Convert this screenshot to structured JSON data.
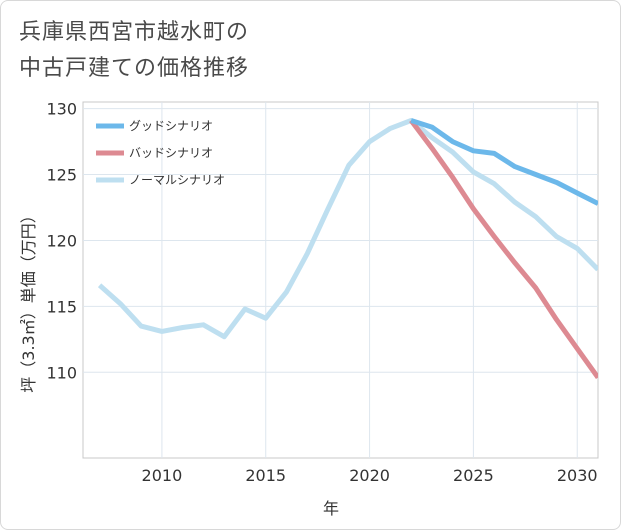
{
  "title": {
    "line1": "兵庫県西宮市越水町の",
    "line2": "中古戸建ての価格推移"
  },
  "chart_data": {
    "type": "line",
    "xlabel": "年",
    "ylabel": "坪（3.3㎡）単価（万円）",
    "xlim": [
      2006.2,
      2031
    ],
    "ylim": [
      103.5,
      130.5
    ],
    "x_ticks": [
      2010,
      2015,
      2020,
      2025,
      2030
    ],
    "y_ticks": [
      110,
      115,
      120,
      125,
      130
    ],
    "grid": true,
    "legend_position": "top-left",
    "series": [
      {
        "name": "グッドシナリオ",
        "color": "#6cb8ea",
        "x": [
          2022,
          2023,
          2024,
          2025,
          2026,
          2027,
          2028,
          2029,
          2030,
          2031
        ],
        "values": [
          129.1,
          128.6,
          127.5,
          126.8,
          126.6,
          125.6,
          125.0,
          124.4,
          123.6,
          122.8
        ]
      },
      {
        "name": "バッドシナリオ",
        "color": "#dd8a92",
        "x": [
          2022,
          2023,
          2024,
          2025,
          2026,
          2027,
          2028,
          2029,
          2030,
          2031
        ],
        "values": [
          129.1,
          127.0,
          124.8,
          122.4,
          120.3,
          118.3,
          116.4,
          114.0,
          111.8,
          109.6
        ]
      },
      {
        "name": "ノーマルシナリオ",
        "color": "#bedff0",
        "x": [
          2007,
          2008,
          2009,
          2010,
          2011,
          2012,
          2013,
          2014,
          2015,
          2016,
          2017,
          2018,
          2019,
          2020,
          2021,
          2022,
          2023,
          2024,
          2025,
          2026,
          2027,
          2028,
          2029,
          2030,
          2031
        ],
        "values": [
          116.6,
          115.2,
          113.5,
          113.1,
          113.4,
          113.6,
          112.7,
          114.8,
          114.1,
          116.1,
          119.0,
          122.4,
          125.7,
          127.5,
          128.5,
          129.1,
          127.8,
          126.7,
          125.2,
          124.3,
          122.9,
          121.8,
          120.3,
          119.4,
          117.8
        ]
      }
    ]
  }
}
